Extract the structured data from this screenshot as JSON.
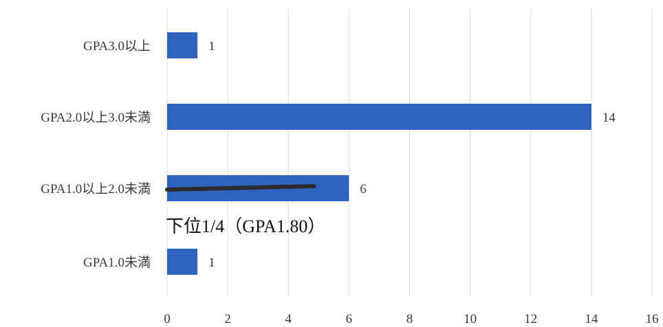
{
  "chart_data": {
    "type": "bar",
    "orientation": "horizontal",
    "categories": [
      "GPA3.0以上",
      "GPA2.0以上3.0未満",
      "GPA1.0以上2.0未満",
      "GPA1.0未満"
    ],
    "values": [
      1,
      14,
      6,
      1
    ],
    "xlim": [
      0,
      16
    ],
    "x_ticks": [
      0,
      2,
      4,
      6,
      8,
      10,
      12,
      14,
      16
    ],
    "grid": "vertical",
    "data_labels": [
      "1",
      "14",
      "6",
      "1"
    ],
    "colors": {
      "bar": "#2e64bf",
      "grid": "#d9d9d9",
      "marker": "#2b2b2b"
    },
    "annotation": {
      "text": "下位1/4（GPA1.80）",
      "category": "GPA1.0以上2.0未満",
      "marker_end_value": 4.85
    }
  }
}
